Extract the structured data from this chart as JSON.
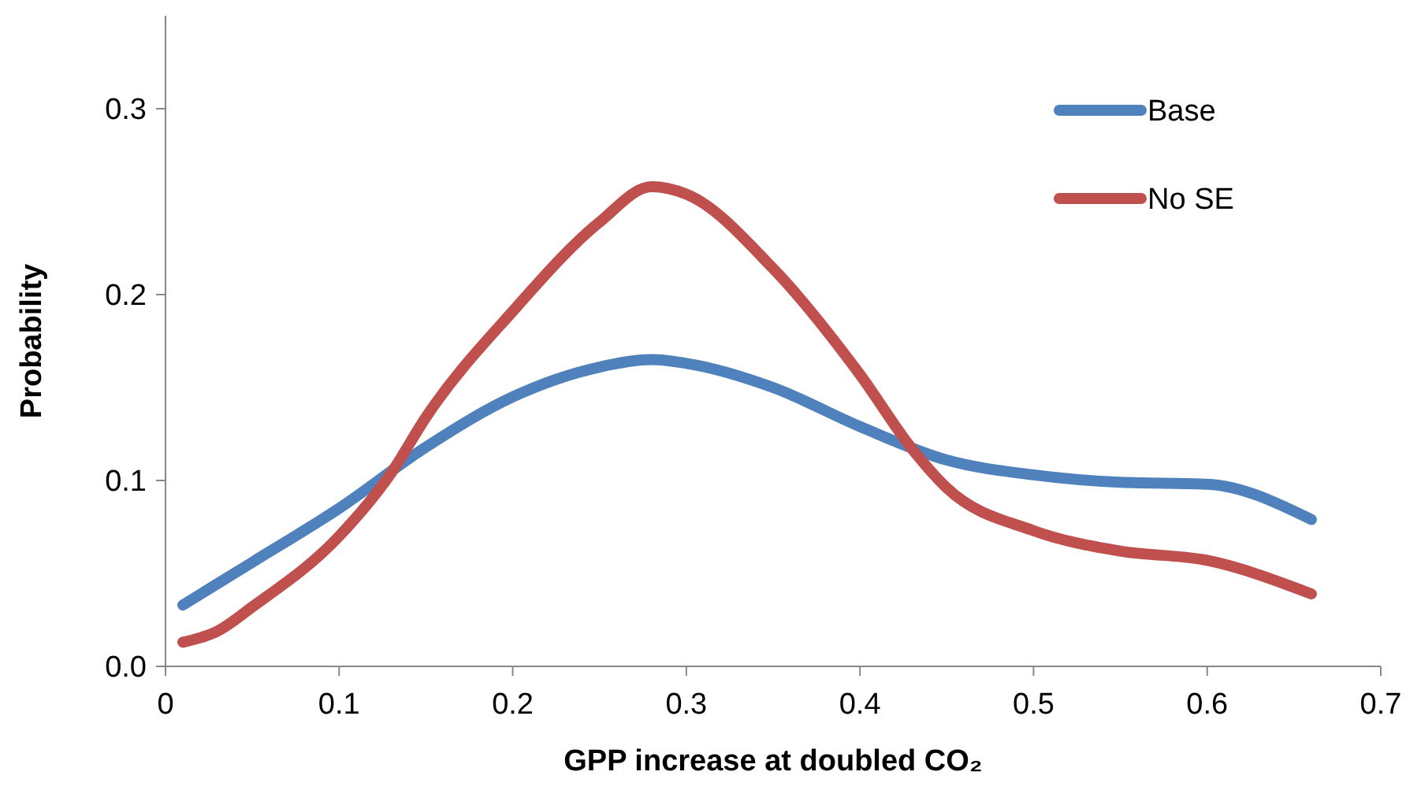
{
  "chart_data": {
    "type": "line",
    "xlabel": "GPP increase at doubled CO₂",
    "ylabel": "Probability",
    "xlim": [
      0,
      0.7
    ],
    "xticks": [
      0,
      0.1,
      0.2,
      0.3,
      0.4,
      0.5,
      0.6,
      0.7
    ],
    "ylim": [
      0,
      0.35
    ],
    "yticks": [
      {
        "value": 0,
        "label": "0.0"
      },
      0.1,
      0.2,
      0.3
    ],
    "grid": false,
    "legend": "top right",
    "marker": "none",
    "line_style": "solid",
    "series": [
      {
        "name": "Base",
        "color": "#4f81bd",
        "x": [
          0.01,
          0.05,
          0.1,
          0.15,
          0.2,
          0.25,
          0.28,
          0.3,
          0.35,
          0.4,
          0.45,
          0.5,
          0.55,
          0.6,
          0.66
        ],
        "values": [
          0.033,
          0.056,
          0.085,
          0.118,
          0.145,
          0.161,
          0.165,
          0.163,
          0.15,
          0.129,
          0.111,
          0.103,
          0.099,
          0.098,
          0.079
        ]
      },
      {
        "name": "No SE",
        "color": "#c0504d",
        "x": [
          0.01,
          0.03,
          0.05,
          0.1,
          0.13,
          0.15,
          0.2,
          0.25,
          0.28,
          0.3,
          0.35,
          0.4,
          0.43,
          0.45,
          0.5,
          0.55,
          0.6,
          0.66
        ],
        "values": [
          0.013,
          0.019,
          0.032,
          0.07,
          0.104,
          0.134,
          0.191,
          0.239,
          0.258,
          0.254,
          0.214,
          0.157,
          0.117,
          0.096,
          0.073,
          0.062,
          0.057,
          0.039
        ]
      }
    ]
  }
}
